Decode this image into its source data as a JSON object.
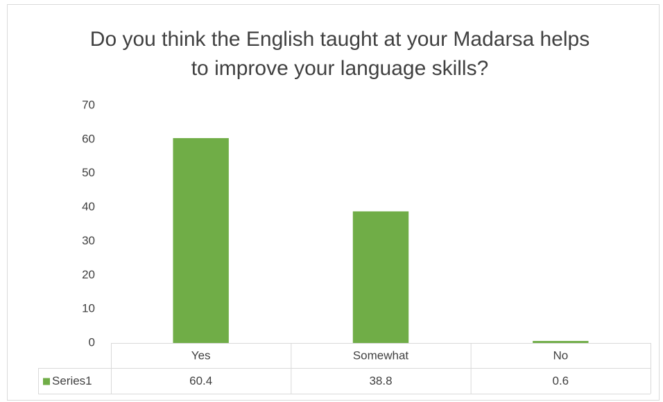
{
  "chart_data": {
    "type": "bar",
    "title": "Do you think the English taught at your Madarsa helps to improve your language skills?",
    "categories": [
      "Yes",
      "Somewhat",
      "No"
    ],
    "series": [
      {
        "name": "Series1",
        "color": "#70ad47",
        "values": [
          60.4,
          38.8,
          0.6
        ]
      }
    ],
    "ylim": [
      0,
      70
    ],
    "yticks": [
      0,
      10,
      20,
      30,
      40,
      50,
      60,
      70
    ],
    "grid": false,
    "data_table": true
  }
}
